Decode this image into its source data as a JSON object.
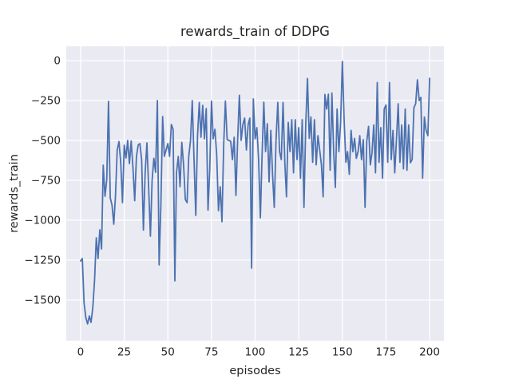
{
  "figure": {
    "title": "rewards_train of DDPG",
    "xlabel": "episodes",
    "ylabel": "rewards_train"
  },
  "chart_data": {
    "type": "line",
    "title": "rewards_train of DDPG",
    "xlabel": "episodes",
    "ylabel": "rewards_train",
    "series_name": "rewards_train",
    "x_start": 0,
    "x_step": 1,
    "x_tick_values": [
      0,
      25,
      50,
      75,
      100,
      125,
      150,
      175,
      200
    ],
    "x_tick_labels": [
      "0",
      "25",
      "50",
      "75",
      "100",
      "125",
      "150",
      "175",
      "200"
    ],
    "y_tick_values": [
      0,
      -250,
      -500,
      -750,
      -1000,
      -1250,
      -1500
    ],
    "y_tick_labels": [
      "0",
      "−250",
      "−500",
      "−750",
      "−1000",
      "−1250",
      "−1500"
    ],
    "xlim": [
      -8.2,
      208.2
    ],
    "ylim": [
      -1755,
      90
    ],
    "grid": true,
    "legend": "none",
    "colors": {
      "line": "#4C72B0",
      "axes_background": "#EAEAF2",
      "grid": "#FFFFFF",
      "figure_background": "#FFFFFF",
      "text": "#262626"
    },
    "values": [
      -1255,
      -1240,
      -1520,
      -1610,
      -1650,
      -1600,
      -1640,
      -1550,
      -1380,
      -1110,
      -1240,
      -1060,
      -1180,
      -655,
      -850,
      -745,
      -255,
      -860,
      -905,
      -1025,
      -850,
      -560,
      -507,
      -637,
      -890,
      -530,
      -610,
      -500,
      -645,
      -503,
      -670,
      -878,
      -600,
      -528,
      -520,
      -620,
      -1062,
      -700,
      -515,
      -800,
      -1100,
      -750,
      -612,
      -700,
      -250,
      -1280,
      -900,
      -350,
      -600,
      -560,
      -520,
      -600,
      -400,
      -430,
      -1380,
      -700,
      -600,
      -790,
      -512,
      -650,
      -870,
      -890,
      -600,
      -500,
      -250,
      -620,
      -970,
      -470,
      -262,
      -480,
      -280,
      -490,
      -300,
      -937,
      -680,
      -253,
      -490,
      -430,
      -590,
      -940,
      -790,
      -1010,
      -520,
      -253,
      -495,
      -500,
      -505,
      -620,
      -480,
      -845,
      -500,
      -217,
      -500,
      -400,
      -360,
      -560,
      -400,
      -360,
      -1300,
      -240,
      -490,
      -420,
      -620,
      -985,
      -600,
      -260,
      -570,
      -395,
      -760,
      -437,
      -720,
      -920,
      -500,
      -262,
      -570,
      -620,
      -262,
      -637,
      -853,
      -387,
      -570,
      -370,
      -703,
      -370,
      -620,
      -420,
      -737,
      -370,
      -920,
      -403,
      -112,
      -487,
      -353,
      -637,
      -370,
      -653,
      -470,
      -560,
      -655,
      -853,
      -212,
      -303,
      -210,
      -687,
      -203,
      -570,
      -795,
      -303,
      -570,
      -387,
      -5,
      -370,
      -637,
      -570,
      -712,
      -437,
      -570,
      -487,
      -612,
      -570,
      -470,
      -620,
      -495,
      -920,
      -503,
      -412,
      -653,
      -578,
      -403,
      -703,
      -137,
      -637,
      -420,
      -737,
      -303,
      -278,
      -637,
      -137,
      -620,
      -437,
      -703,
      -500,
      -270,
      -637,
      -403,
      -678,
      -303,
      -687,
      -403,
      -640,
      -620,
      -295,
      -270,
      -120,
      -250,
      -230,
      -737,
      -353,
      -437,
      -470,
      -110
    ]
  }
}
